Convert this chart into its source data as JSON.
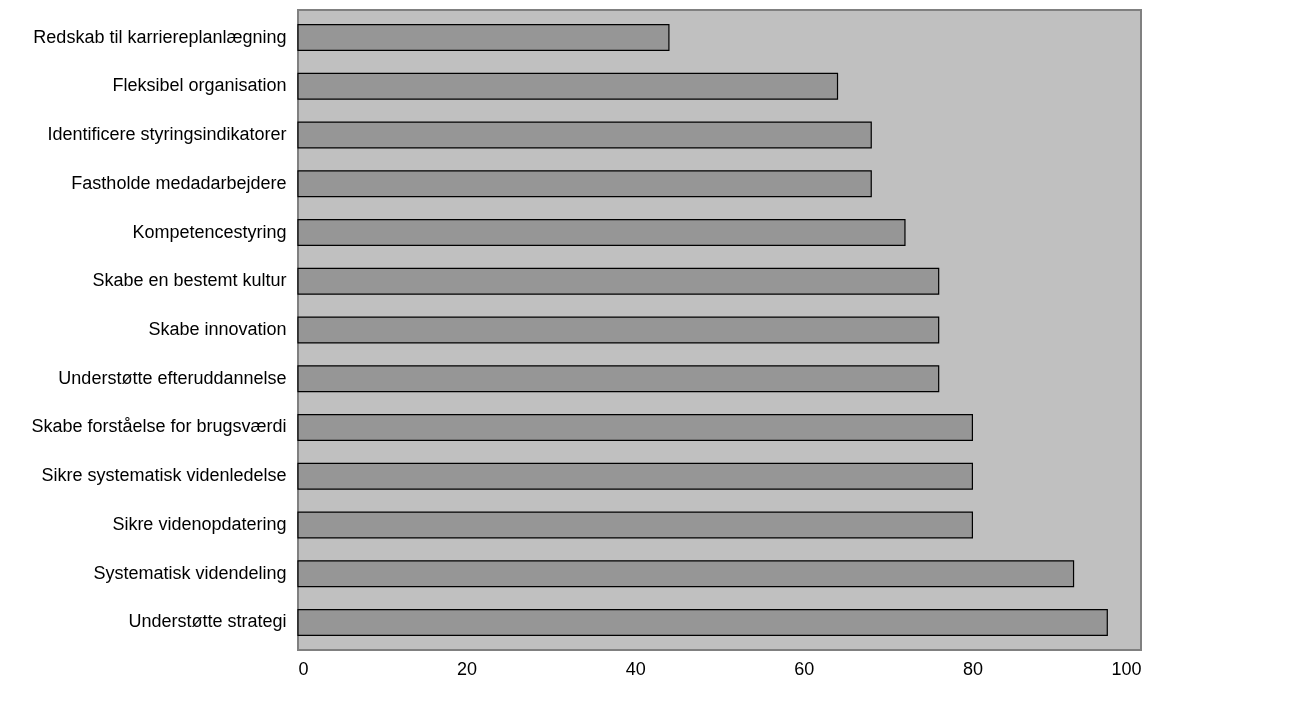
{
  "chart_data": {
    "type": "bar",
    "orientation": "horizontal",
    "categories": [
      "Redskab til karriereplanlægning",
      "Fleksibel organisation",
      "Identificere styringsindikatorer",
      "Fastholde medadarbejdere",
      "Kompetencestyring",
      "Skabe en bestemt kultur",
      "Skabe innovation",
      "Understøtte efteruddannelse",
      "Skabe forståelse for brugsværdi",
      "Sikre systematisk videnledelse",
      "Sikre videnopdatering",
      "Systematisk videndeling",
      "Understøtte strategi"
    ],
    "values": [
      44,
      64,
      68,
      68,
      72,
      76,
      76,
      76,
      80,
      80,
      80,
      92,
      96
    ],
    "color": "#969696",
    "xlim": [
      0,
      100
    ],
    "xticks": [
      0,
      20,
      40,
      60,
      80,
      100
    ],
    "grid": false
  }
}
